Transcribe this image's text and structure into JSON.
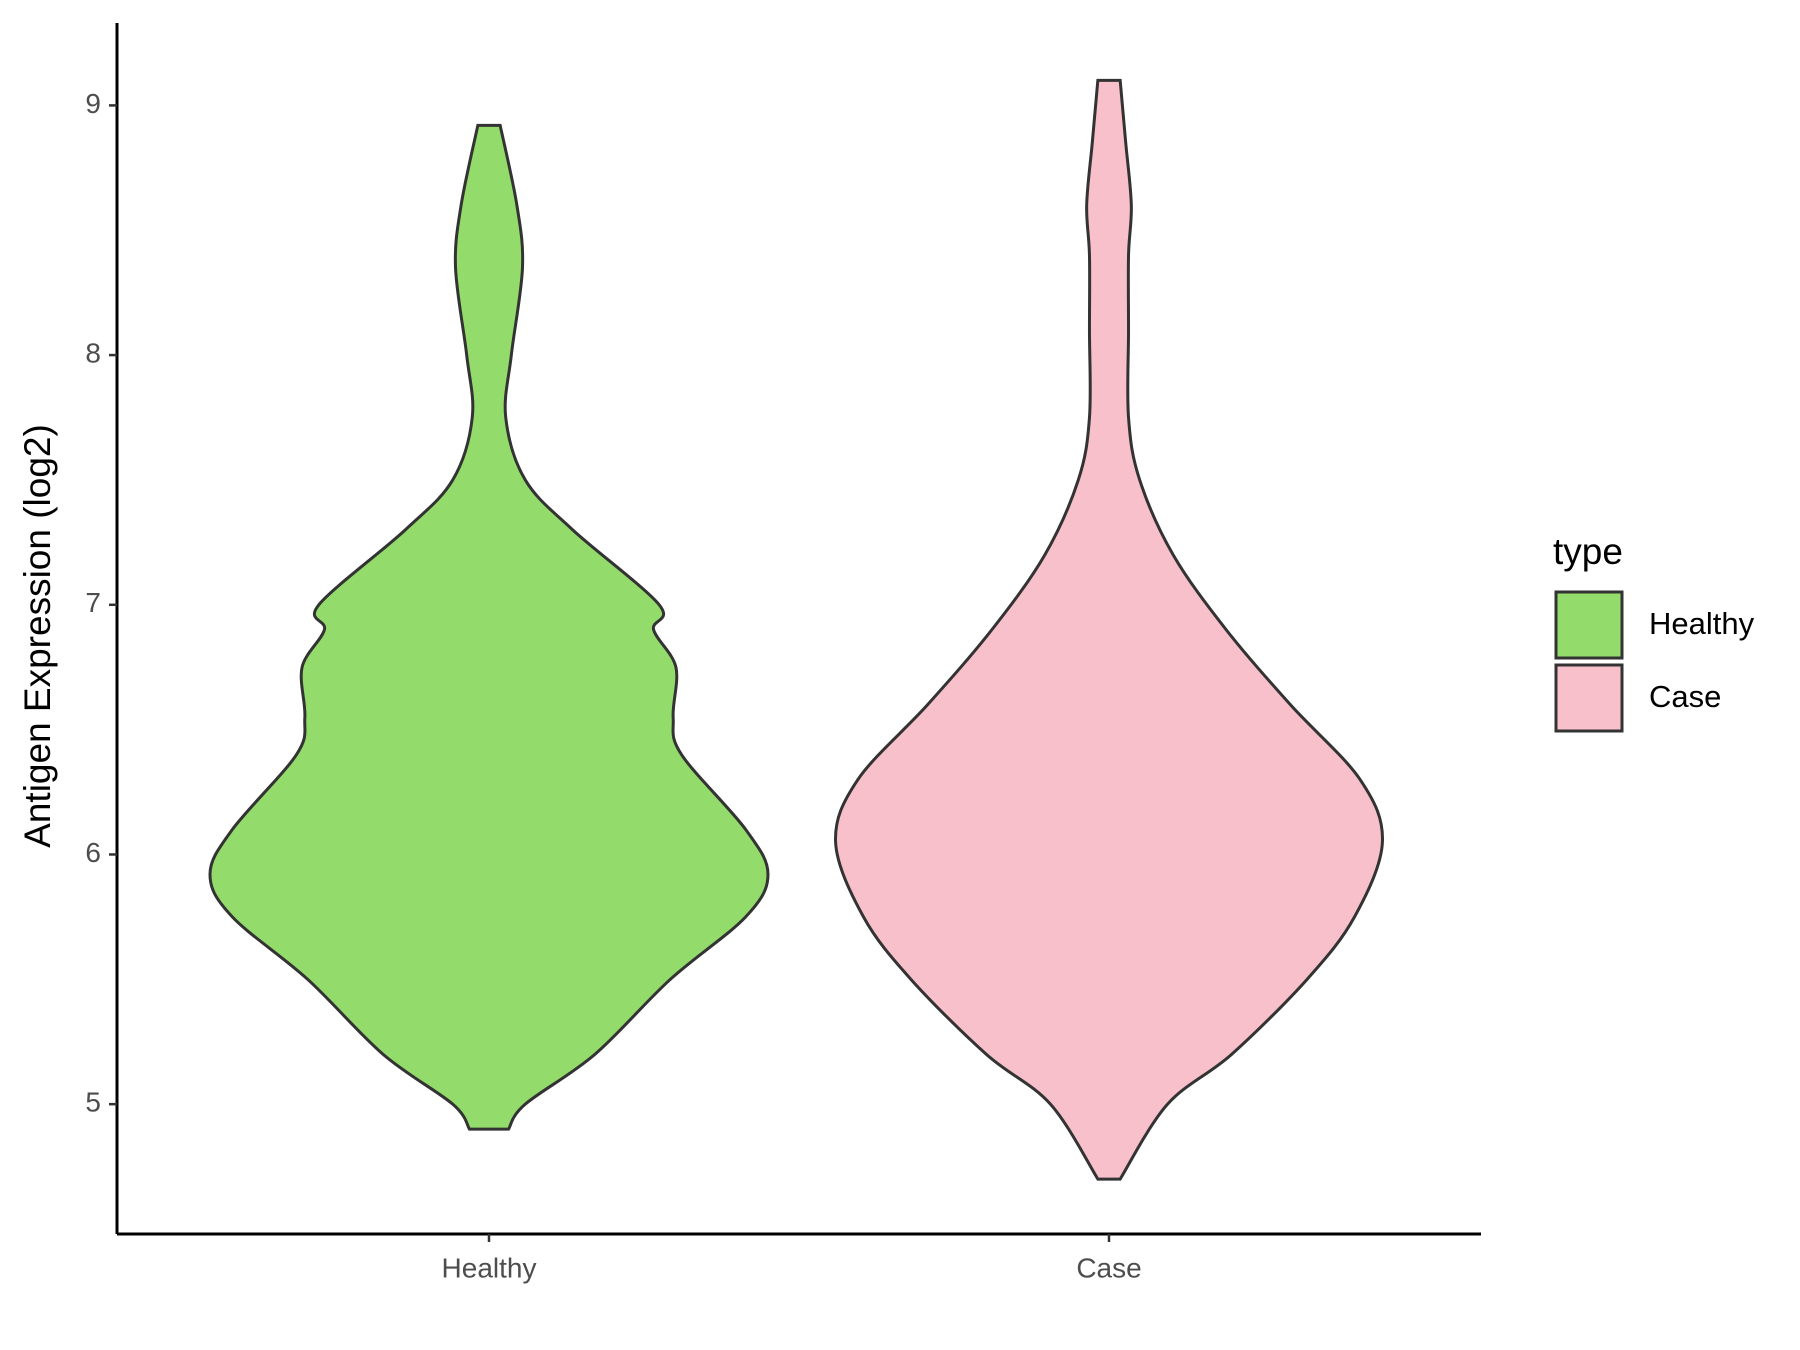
{
  "chart_data": {
    "type": "violin",
    "y_label": "Antigen Expression (log2)",
    "categories": [
      "Healthy",
      "Case"
    ],
    "legend_title": "type",
    "legend": "right",
    "ylim": [
      4.48,
      9.33
    ],
    "yticks": [
      5,
      6,
      7,
      8,
      9
    ],
    "series": [
      {
        "name": "Healthy",
        "color": "#93dc6b",
        "y": [
          4.9,
          5.0,
          5.2,
          5.5,
          5.75,
          5.92,
          6.1,
          6.4,
          6.55,
          6.75,
          6.9,
          7.0,
          7.3,
          7.5,
          7.75,
          8.0,
          8.35,
          8.6,
          8.92
        ],
        "density": [
          0.07,
          0.13,
          0.38,
          0.65,
          0.92,
          1.0,
          0.92,
          0.69,
          0.66,
          0.67,
          0.59,
          0.61,
          0.3,
          0.13,
          0.06,
          0.08,
          0.12,
          0.1,
          0.04
        ]
      },
      {
        "name": "Case",
        "color": "#f8c0cb",
        "y": [
          4.7,
          5.0,
          5.2,
          5.5,
          5.75,
          6.05,
          6.3,
          6.6,
          6.9,
          7.2,
          7.5,
          7.75,
          8.1,
          8.4,
          8.6,
          8.85,
          9.1
        ],
        "density": [
          0.04,
          0.21,
          0.44,
          0.71,
          0.88,
          0.98,
          0.9,
          0.65,
          0.42,
          0.23,
          0.11,
          0.07,
          0.07,
          0.07,
          0.08,
          0.06,
          0.04
        ]
      }
    ]
  }
}
